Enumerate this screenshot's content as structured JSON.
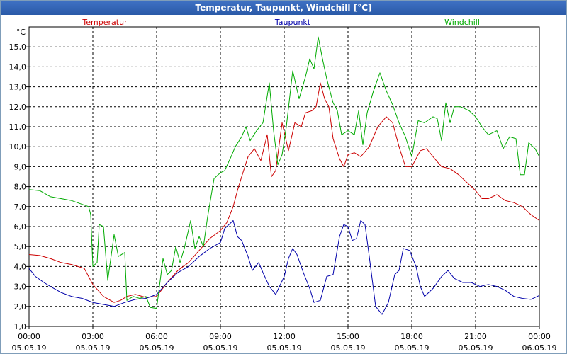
{
  "chart_data": {
    "type": "line",
    "title": "Temperatur, Taupunkt, Windchill [°C]",
    "y_unit": "°C",
    "xlim": [
      0,
      24
    ],
    "ylim": [
      1,
      16
    ],
    "y_ticks": [
      1,
      2,
      3,
      4,
      5,
      6,
      7,
      8,
      9,
      10,
      11,
      12,
      13,
      14,
      15
    ],
    "y_tick_labels": [
      "1,0",
      "2,0",
      "3,0",
      "4,0",
      "5,0",
      "6,0",
      "7,0",
      "8,0",
      "9,0",
      "10,0",
      "11,0",
      "12,0",
      "13,0",
      "14,0",
      "15,0"
    ],
    "x_ticks": [
      {
        "hour": 0,
        "time": "00:00",
        "date": "05.05.19"
      },
      {
        "hour": 3,
        "time": "03:00",
        "date": "05.05.19"
      },
      {
        "hour": 6,
        "time": "06:00",
        "date": "05.05.19"
      },
      {
        "hour": 9,
        "time": "09:00",
        "date": "05.05.19"
      },
      {
        "hour": 12,
        "time": "12:00",
        "date": "05.05.19"
      },
      {
        "hour": 15,
        "time": "15:00",
        "date": "05.05.19"
      },
      {
        "hour": 18,
        "time": "18:00",
        "date": "05.05.19"
      },
      {
        "hour": 21,
        "time": "21:00",
        "date": "05.05.19"
      },
      {
        "hour": 24,
        "time": "00:00",
        "date": "06.05.19"
      }
    ],
    "grid": true,
    "legend_position": "top",
    "series": [
      {
        "name": "Temperatur",
        "color": "#cc0000",
        "points": [
          [
            0.0,
            4.6
          ],
          [
            0.5,
            4.55
          ],
          [
            1.0,
            4.4
          ],
          [
            1.5,
            4.2
          ],
          [
            2.0,
            4.1
          ],
          [
            2.6,
            3.9
          ],
          [
            3.0,
            3.1
          ],
          [
            3.5,
            2.5
          ],
          [
            4.0,
            2.2
          ],
          [
            4.3,
            2.3
          ],
          [
            4.6,
            2.5
          ],
          [
            5.0,
            2.6
          ],
          [
            5.5,
            2.45
          ],
          [
            6.0,
            2.5
          ],
          [
            6.5,
            3.2
          ],
          [
            7.0,
            3.8
          ],
          [
            7.5,
            4.2
          ],
          [
            8.0,
            4.8
          ],
          [
            8.5,
            5.4
          ],
          [
            9.0,
            5.8
          ],
          [
            9.3,
            6.2
          ],
          [
            9.6,
            7.0
          ],
          [
            9.8,
            7.8
          ],
          [
            10.0,
            8.5
          ],
          [
            10.3,
            9.5
          ],
          [
            10.6,
            9.9
          ],
          [
            10.9,
            9.3
          ],
          [
            11.2,
            10.6
          ],
          [
            11.4,
            8.5
          ],
          [
            11.6,
            8.8
          ],
          [
            11.9,
            11.2
          ],
          [
            12.2,
            9.8
          ],
          [
            12.5,
            11.2
          ],
          [
            12.8,
            11.0
          ],
          [
            13.0,
            11.7
          ],
          [
            13.3,
            11.8
          ],
          [
            13.5,
            12.0
          ],
          [
            13.7,
            13.2
          ],
          [
            13.9,
            12.4
          ],
          [
            14.1,
            12.0
          ],
          [
            14.3,
            10.4
          ],
          [
            14.6,
            9.4
          ],
          [
            14.8,
            9.0
          ],
          [
            15.0,
            9.6
          ],
          [
            15.3,
            9.7
          ],
          [
            15.6,
            9.5
          ],
          [
            16.0,
            10.0
          ],
          [
            16.4,
            11.0
          ],
          [
            16.8,
            11.5
          ],
          [
            17.1,
            11.2
          ],
          [
            17.4,
            10.0
          ],
          [
            17.7,
            9.0
          ],
          [
            18.0,
            9.0
          ],
          [
            18.4,
            9.8
          ],
          [
            18.7,
            9.9
          ],
          [
            19.0,
            9.5
          ],
          [
            19.4,
            9.0
          ],
          [
            19.8,
            8.9
          ],
          [
            20.2,
            8.6
          ],
          [
            20.6,
            8.2
          ],
          [
            21.0,
            7.8
          ],
          [
            21.3,
            7.4
          ],
          [
            21.6,
            7.4
          ],
          [
            22.0,
            7.6
          ],
          [
            22.4,
            7.3
          ],
          [
            22.8,
            7.2
          ],
          [
            23.2,
            7.0
          ],
          [
            23.6,
            6.6
          ],
          [
            24.0,
            6.3
          ]
        ]
      },
      {
        "name": "Taupunkt",
        "color": "#0000aa",
        "points": [
          [
            0.0,
            3.9
          ],
          [
            0.3,
            3.5
          ],
          [
            0.7,
            3.2
          ],
          [
            1.0,
            3.0
          ],
          [
            1.5,
            2.7
          ],
          [
            2.0,
            2.5
          ],
          [
            2.5,
            2.4
          ],
          [
            3.0,
            2.2
          ],
          [
            3.5,
            2.1
          ],
          [
            4.0,
            2.0
          ],
          [
            4.5,
            2.2
          ],
          [
            5.0,
            2.35
          ],
          [
            5.5,
            2.4
          ],
          [
            6.0,
            2.6
          ],
          [
            6.5,
            3.2
          ],
          [
            7.0,
            3.7
          ],
          [
            7.5,
            4.0
          ],
          [
            8.0,
            4.5
          ],
          [
            8.5,
            4.9
          ],
          [
            9.0,
            5.2
          ],
          [
            9.2,
            5.9
          ],
          [
            9.4,
            6.1
          ],
          [
            9.6,
            6.3
          ],
          [
            9.8,
            5.5
          ],
          [
            10.0,
            5.3
          ],
          [
            10.3,
            4.5
          ],
          [
            10.5,
            3.8
          ],
          [
            10.8,
            4.2
          ],
          [
            11.0,
            3.7
          ],
          [
            11.3,
            3.0
          ],
          [
            11.6,
            2.6
          ],
          [
            12.0,
            3.5
          ],
          [
            12.2,
            4.4
          ],
          [
            12.4,
            4.9
          ],
          [
            12.6,
            4.6
          ],
          [
            12.9,
            3.7
          ],
          [
            13.2,
            2.9
          ],
          [
            13.4,
            2.2
          ],
          [
            13.7,
            2.3
          ],
          [
            14.0,
            3.5
          ],
          [
            14.3,
            3.6
          ],
          [
            14.6,
            5.5
          ],
          [
            14.8,
            6.1
          ],
          [
            15.0,
            6.0
          ],
          [
            15.2,
            5.3
          ],
          [
            15.4,
            5.4
          ],
          [
            15.6,
            6.3
          ],
          [
            15.8,
            6.1
          ],
          [
            16.0,
            4.5
          ],
          [
            16.3,
            2.0
          ],
          [
            16.6,
            1.6
          ],
          [
            16.9,
            2.2
          ],
          [
            17.2,
            3.6
          ],
          [
            17.4,
            3.8
          ],
          [
            17.6,
            4.9
          ],
          [
            17.9,
            4.8
          ],
          [
            18.2,
            4.0
          ],
          [
            18.4,
            3.0
          ],
          [
            18.6,
            2.5
          ],
          [
            19.0,
            2.9
          ],
          [
            19.4,
            3.5
          ],
          [
            19.7,
            3.8
          ],
          [
            20.0,
            3.4
          ],
          [
            20.4,
            3.2
          ],
          [
            20.8,
            3.2
          ],
          [
            21.2,
            3.0
          ],
          [
            21.6,
            3.1
          ],
          [
            22.0,
            3.0
          ],
          [
            22.4,
            2.8
          ],
          [
            22.8,
            2.5
          ],
          [
            23.2,
            2.4
          ],
          [
            23.6,
            2.35
          ],
          [
            24.0,
            2.55
          ]
        ]
      },
      {
        "name": "Windchill",
        "color": "#00aa00",
        "points": [
          [
            0.0,
            7.85
          ],
          [
            0.5,
            7.8
          ],
          [
            1.0,
            7.5
          ],
          [
            2.0,
            7.3
          ],
          [
            2.8,
            7.0
          ],
          [
            2.9,
            6.6
          ],
          [
            3.0,
            4.0
          ],
          [
            3.2,
            4.2
          ],
          [
            3.3,
            6.1
          ],
          [
            3.5,
            6.0
          ],
          [
            3.7,
            3.3
          ],
          [
            4.0,
            5.6
          ],
          [
            4.2,
            4.5
          ],
          [
            4.5,
            4.7
          ],
          [
            4.6,
            2.3
          ],
          [
            4.9,
            2.5
          ],
          [
            5.2,
            2.4
          ],
          [
            5.5,
            2.5
          ],
          [
            5.7,
            1.95
          ],
          [
            6.0,
            1.9
          ],
          [
            6.3,
            4.4
          ],
          [
            6.5,
            3.6
          ],
          [
            6.7,
            3.8
          ],
          [
            6.9,
            5.0
          ],
          [
            7.1,
            4.2
          ],
          [
            7.3,
            4.9
          ],
          [
            7.6,
            6.3
          ],
          [
            7.8,
            4.9
          ],
          [
            8.0,
            5.5
          ],
          [
            8.2,
            5.0
          ],
          [
            8.4,
            6.5
          ],
          [
            8.7,
            8.4
          ],
          [
            9.0,
            8.7
          ],
          [
            9.2,
            8.8
          ],
          [
            9.5,
            9.5
          ],
          [
            9.7,
            10.0
          ],
          [
            10.0,
            10.5
          ],
          [
            10.2,
            11.0
          ],
          [
            10.4,
            10.3
          ],
          [
            10.7,
            10.8
          ],
          [
            11.0,
            11.2
          ],
          [
            11.3,
            13.2
          ],
          [
            11.5,
            10.8
          ],
          [
            11.7,
            9.1
          ],
          [
            11.9,
            9.6
          ],
          [
            12.1,
            11.0
          ],
          [
            12.4,
            13.8
          ],
          [
            12.7,
            12.4
          ],
          [
            13.0,
            13.5
          ],
          [
            13.2,
            14.4
          ],
          [
            13.4,
            13.9
          ],
          [
            13.6,
            15.5
          ],
          [
            13.8,
            14.4
          ],
          [
            14.0,
            13.4
          ],
          [
            14.3,
            12.2
          ],
          [
            14.5,
            11.8
          ],
          [
            14.7,
            10.6
          ],
          [
            15.0,
            10.8
          ],
          [
            15.3,
            10.6
          ],
          [
            15.5,
            11.8
          ],
          [
            15.7,
            10.1
          ],
          [
            15.9,
            11.7
          ],
          [
            16.2,
            12.8
          ],
          [
            16.5,
            13.7
          ],
          [
            16.8,
            12.8
          ],
          [
            17.1,
            12.1
          ],
          [
            17.4,
            11.2
          ],
          [
            17.7,
            10.5
          ],
          [
            18.0,
            9.5
          ],
          [
            18.3,
            11.3
          ],
          [
            18.6,
            11.2
          ],
          [
            19.0,
            11.5
          ],
          [
            19.2,
            11.4
          ],
          [
            19.4,
            10.3
          ],
          [
            19.6,
            12.2
          ],
          [
            19.8,
            11.2
          ],
          [
            20.0,
            12.0
          ],
          [
            20.3,
            12.0
          ],
          [
            20.7,
            11.8
          ],
          [
            21.0,
            11.5
          ],
          [
            21.3,
            11.0
          ],
          [
            21.6,
            10.6
          ],
          [
            22.0,
            10.8
          ],
          [
            22.3,
            9.9
          ],
          [
            22.6,
            10.5
          ],
          [
            22.9,
            10.4
          ],
          [
            23.1,
            8.6
          ],
          [
            23.3,
            8.6
          ],
          [
            23.5,
            10.2
          ],
          [
            23.8,
            9.9
          ],
          [
            24.0,
            9.5
          ]
        ]
      }
    ]
  }
}
